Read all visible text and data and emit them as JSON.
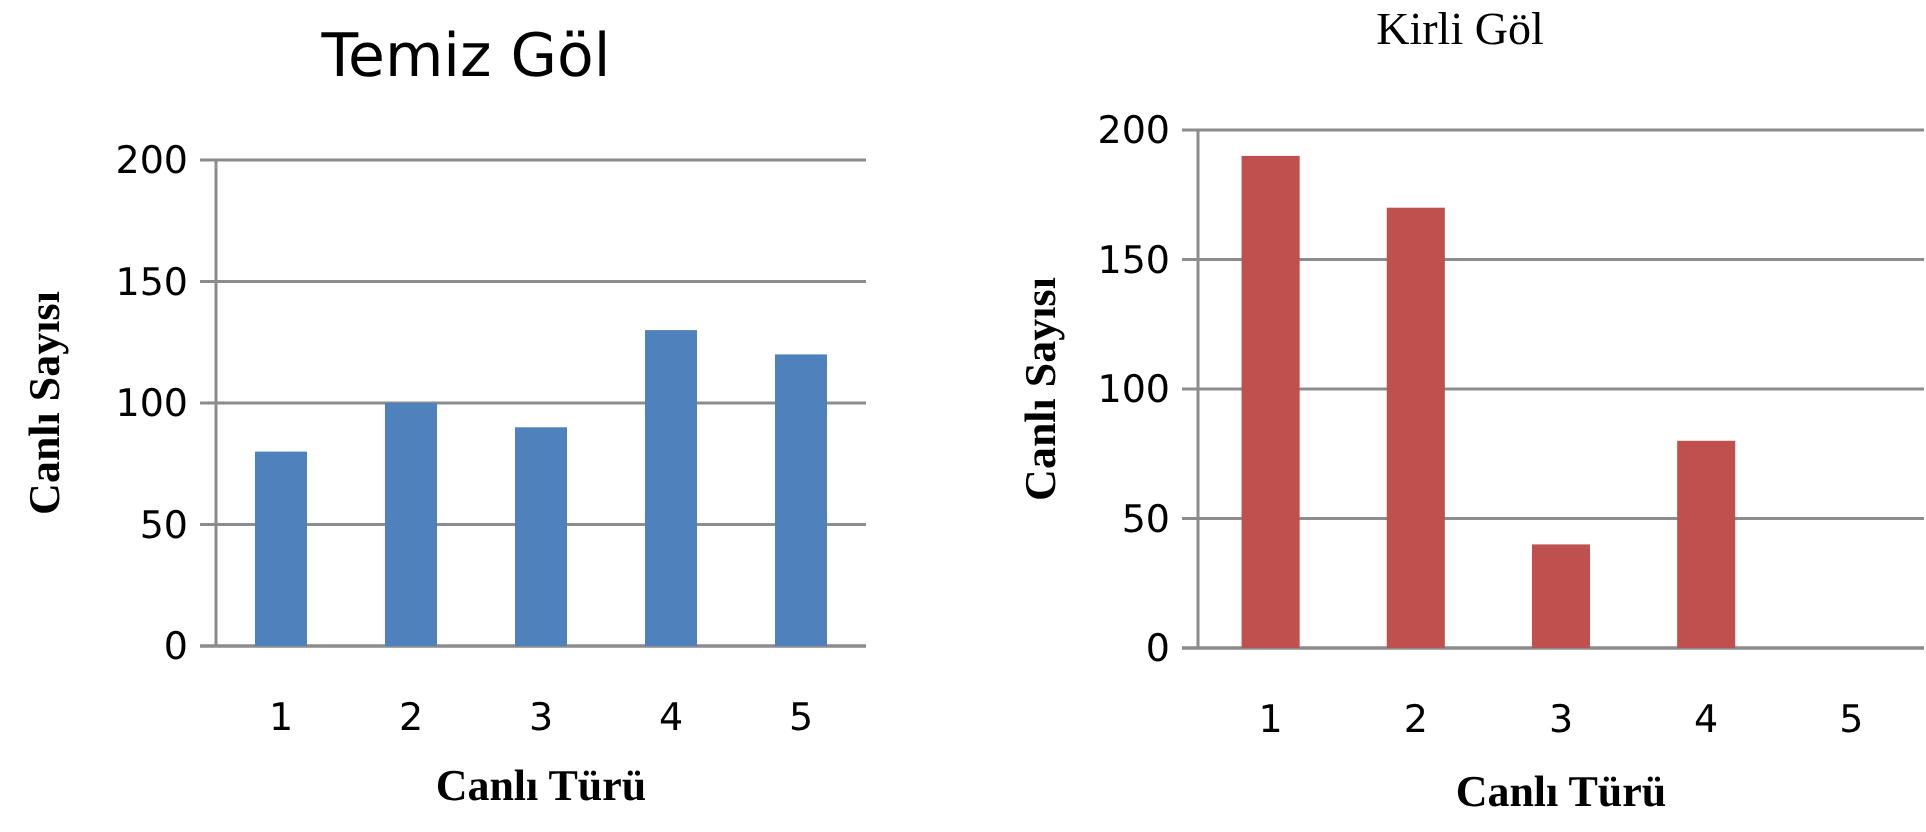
{
  "chart_data": [
    {
      "type": "bar",
      "title": "Temiz Göl",
      "xlabel": "Canlı Türü",
      "ylabel": "Canlı Sayısı",
      "categories": [
        "1",
        "2",
        "3",
        "4",
        "5"
      ],
      "values": [
        80,
        100,
        90,
        130,
        120
      ],
      "color": "#4f81bd",
      "ylim": [
        0,
        200
      ],
      "yticks": [
        0,
        50,
        100,
        150,
        200
      ],
      "grid": "y"
    },
    {
      "type": "bar",
      "title": "Kirli Göl",
      "xlabel": "Canlı Türü",
      "ylabel": "Canlı Sayısı",
      "categories": [
        "1",
        "2",
        "3",
        "4",
        "5"
      ],
      "values": [
        190,
        170,
        40,
        80,
        0
      ],
      "color": "#c0504d",
      "ylim": [
        0,
        200
      ],
      "yticks": [
        0,
        50,
        100,
        150,
        200
      ],
      "grid": "y"
    }
  ]
}
